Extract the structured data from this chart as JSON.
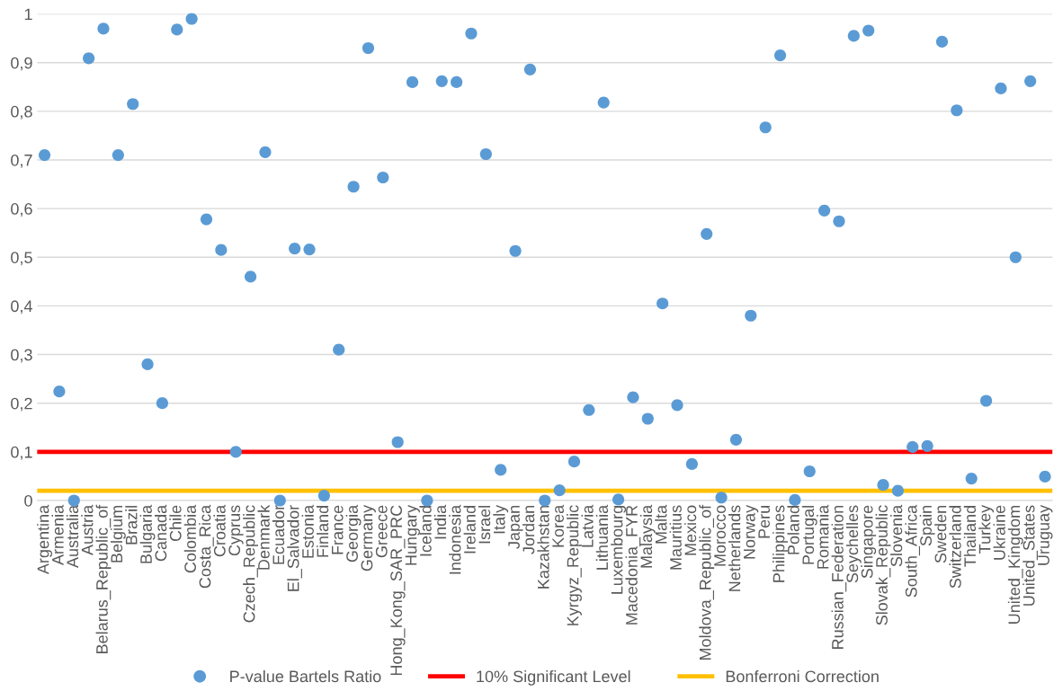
{
  "chart_data": {
    "type": "scatter",
    "categories": [
      "Argentina",
      "Armenia",
      "Australia",
      "Austria",
      "Belarus_Republic_of",
      "Belgium",
      "Brazil",
      "Bulgaria",
      "Canada",
      "Chile",
      "Colombia",
      "Costa_Rica",
      "Croatia",
      "Cyprus",
      "Czech_Republic",
      "Denmark",
      "Ecuador",
      "El_Salvador",
      "Estonia",
      "Finland",
      "France",
      "Georgia",
      "Germany",
      "Greece",
      "Hong_Kong_SAR_PRC",
      "Hungary",
      "Iceland",
      "India",
      "Indonesia",
      "Ireland",
      "Israel",
      "Italy",
      "Japan",
      "Jordan",
      "Kazakhstan",
      "Korea",
      "Kyrgyz_Republic",
      "Latvia",
      "Lithuania",
      "Luxembourg",
      "Macedonia_FYR",
      "Malaysia",
      "Malta",
      "Mauritius",
      "Mexico",
      "Moldova_Republic_of",
      "Morocco",
      "Netherlands",
      "Norway",
      "Peru",
      "Philippines",
      "Poland",
      "Portugal",
      "Romania",
      "Russian_Federation",
      "Seychelles",
      "Singapore",
      "Slovak_Republic",
      "Slovenia",
      "South_Africa",
      "Spain",
      "Sweden",
      "Switzerland",
      "Thailand",
      "Turkey",
      "Ukraine",
      "United_Kingdom",
      "United_States",
      "Uruguay"
    ],
    "series": [
      {
        "name": "P-value Bartels Ratio",
        "color": "#5b9bd5",
        "values": [
          0.71,
          0.224,
          0.0,
          0.909,
          0.97,
          0.71,
          0.815,
          0.28,
          0.2,
          0.968,
          0.99,
          0.578,
          0.515,
          0.1,
          0.46,
          0.716,
          0.0,
          0.518,
          0.516,
          0.01,
          0.31,
          0.645,
          0.93,
          0.664,
          0.12,
          0.86,
          0.0,
          0.862,
          0.86,
          0.96,
          0.712,
          0.063,
          0.513,
          0.886,
          0.0,
          0.021,
          0.08,
          0.186,
          0.818,
          0.002,
          0.212,
          0.168,
          0.405,
          0.196,
          0.075,
          0.548,
          0.006,
          0.125,
          0.38,
          0.767,
          0.915,
          0.001,
          0.06,
          0.596,
          0.574,
          0.955,
          0.966,
          0.032,
          0.02,
          0.11,
          0.112,
          0.943,
          0.802,
          0.045,
          0.205,
          0.847,
          0.5,
          0.862,
          0.049
        ]
      }
    ],
    "ylim": [
      0,
      1
    ],
    "yticks": [
      0,
      {
        "value": 0.1,
        "label": "0,1"
      },
      {
        "value": 0.2,
        "label": "0,2"
      },
      {
        "value": 0.3,
        "label": "0,3"
      },
      {
        "value": 0.4,
        "label": "0,4"
      },
      {
        "value": 0.5,
        "label": "0,5"
      },
      {
        "value": 0.6,
        "label": "0,6"
      },
      {
        "value": 0.7,
        "label": "0,7"
      },
      {
        "value": 0.8,
        "label": "0,8"
      },
      {
        "value": 0.9,
        "label": "0,9"
      },
      1
    ],
    "ref_lines": [
      {
        "axis": "y",
        "value": 0.1,
        "label": "10% Significant Level",
        "color": "#ff0000"
      },
      {
        "axis": "y",
        "value": 0.02,
        "label": "Bonferroni Correction",
        "color": "#ffc000"
      }
    ],
    "grid": "y",
    "legend": "bottom",
    "marker": "circle"
  }
}
